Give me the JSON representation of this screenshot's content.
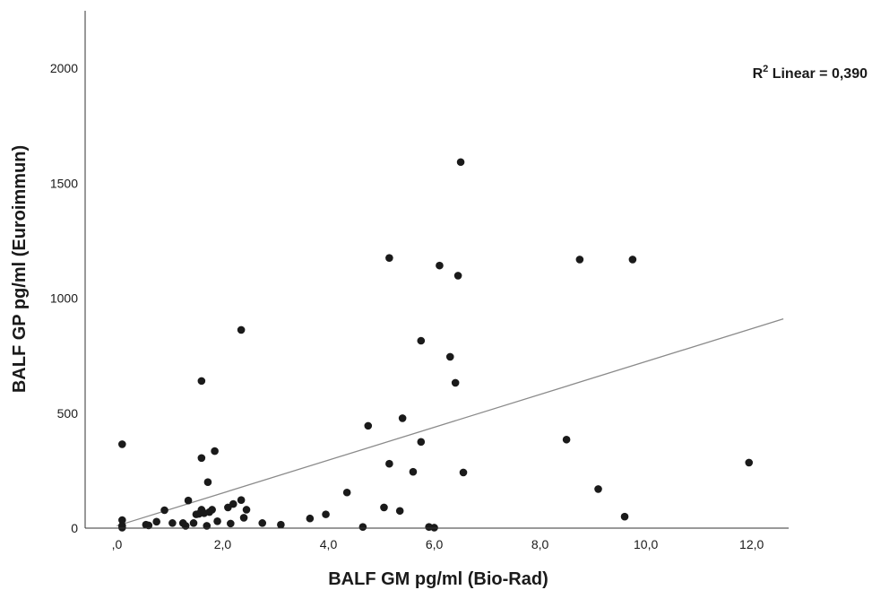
{
  "chart_data": {
    "type": "scatter",
    "xlabel": "BALF GM pg/ml (Bio-Rad)",
    "ylabel": "BALF GP pg/ml (Euroimmun)",
    "xlim": [
      -0.6,
      12.7
    ],
    "ylim": [
      0,
      2250
    ],
    "x_ticks": [
      {
        "value": 0,
        "label": ",0"
      },
      {
        "value": 2,
        "label": "2,0"
      },
      {
        "value": 4,
        "label": "4,0"
      },
      {
        "value": 6,
        "label": "6,0"
      },
      {
        "value": 8,
        "label": "8,0"
      },
      {
        "value": 10,
        "label": "10,0"
      },
      {
        "value": 12,
        "label": "12,0"
      }
    ],
    "y_ticks": [
      {
        "value": 0,
        "label": "0"
      },
      {
        "value": 500,
        "label": "500"
      },
      {
        "value": 1000,
        "label": "1000"
      },
      {
        "value": 1500,
        "label": "1500"
      },
      {
        "value": 2000,
        "label": "2000"
      }
    ],
    "annotation": {
      "r2_prefix": "R",
      "r2_superscript": "2",
      "r2_text": " Linear = 0,390"
    },
    "fit_line": {
      "x": [
        0.0,
        12.6
      ],
      "y": [
        10,
        910
      ]
    },
    "colors": {
      "points": "#1a1a1a",
      "line": "#8a8a8a",
      "axis": "#333333"
    },
    "points": [
      {
        "x": 0.1,
        "y": 2
      },
      {
        "x": 0.1,
        "y": 10
      },
      {
        "x": 0.1,
        "y": 35
      },
      {
        "x": 0.1,
        "y": 365
      },
      {
        "x": 0.55,
        "y": 15
      },
      {
        "x": 0.6,
        "y": 12
      },
      {
        "x": 0.75,
        "y": 28
      },
      {
        "x": 0.9,
        "y": 78
      },
      {
        "x": 1.05,
        "y": 22
      },
      {
        "x": 1.25,
        "y": 22
      },
      {
        "x": 1.3,
        "y": 10
      },
      {
        "x": 1.35,
        "y": 120
      },
      {
        "x": 1.45,
        "y": 22
      },
      {
        "x": 1.5,
        "y": 60
      },
      {
        "x": 1.55,
        "y": 62
      },
      {
        "x": 1.6,
        "y": 80
      },
      {
        "x": 1.6,
        "y": 305
      },
      {
        "x": 1.6,
        "y": 640
      },
      {
        "x": 1.65,
        "y": 65
      },
      {
        "x": 1.7,
        "y": 10
      },
      {
        "x": 1.72,
        "y": 200
      },
      {
        "x": 1.75,
        "y": 70
      },
      {
        "x": 1.8,
        "y": 80
      },
      {
        "x": 1.85,
        "y": 335
      },
      {
        "x": 1.9,
        "y": 30
      },
      {
        "x": 2.1,
        "y": 90
      },
      {
        "x": 2.15,
        "y": 20
      },
      {
        "x": 2.2,
        "y": 105
      },
      {
        "x": 2.35,
        "y": 122
      },
      {
        "x": 2.35,
        "y": 862
      },
      {
        "x": 2.4,
        "y": 45
      },
      {
        "x": 2.45,
        "y": 80
      },
      {
        "x": 2.75,
        "y": 22
      },
      {
        "x": 3.1,
        "y": 15
      },
      {
        "x": 3.65,
        "y": 42
      },
      {
        "x": 3.95,
        "y": 60
      },
      {
        "x": 4.35,
        "y": 155
      },
      {
        "x": 4.65,
        "y": 5
      },
      {
        "x": 4.75,
        "y": 445
      },
      {
        "x": 5.05,
        "y": 90
      },
      {
        "x": 5.15,
        "y": 280
      },
      {
        "x": 5.15,
        "y": 1175
      },
      {
        "x": 5.35,
        "y": 75
      },
      {
        "x": 5.4,
        "y": 478
      },
      {
        "x": 5.6,
        "y": 245
      },
      {
        "x": 5.75,
        "y": 815
      },
      {
        "x": 5.75,
        "y": 375
      },
      {
        "x": 5.9,
        "y": 5
      },
      {
        "x": 6.0,
        "y": 2
      },
      {
        "x": 6.1,
        "y": 1142
      },
      {
        "x": 6.3,
        "y": 745
      },
      {
        "x": 6.4,
        "y": 632
      },
      {
        "x": 6.45,
        "y": 1098
      },
      {
        "x": 6.5,
        "y": 1592
      },
      {
        "x": 6.55,
        "y": 242
      },
      {
        "x": 8.5,
        "y": 385
      },
      {
        "x": 8.75,
        "y": 1168
      },
      {
        "x": 9.1,
        "y": 170
      },
      {
        "x": 9.6,
        "y": 50
      },
      {
        "x": 9.75,
        "y": 1168
      },
      {
        "x": 11.95,
        "y": 285
      }
    ]
  }
}
